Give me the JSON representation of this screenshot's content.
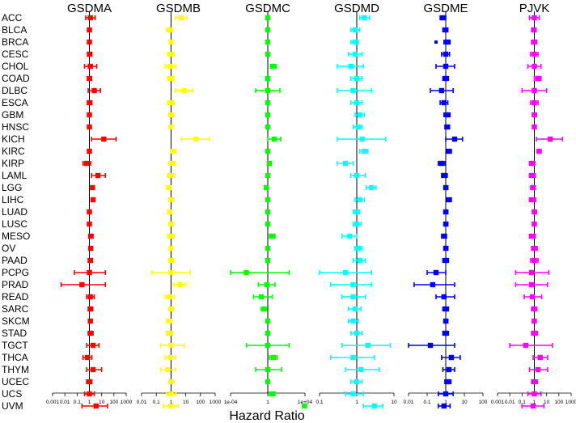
{
  "chart_data": {
    "type": "forest",
    "xlabel": "Hazard Ratio",
    "x_scale": "log",
    "categories": [
      "ACC",
      "BLCA",
      "BRCA",
      "CESC",
      "CHOL",
      "COAD",
      "DLBC",
      "ESCA",
      "GBM",
      "HNSC",
      "KICH",
      "KIRC",
      "KIRP",
      "LAML",
      "LGG",
      "LIHC",
      "LUAD",
      "LUSC",
      "MESO",
      "OV",
      "PAAD",
      "PCPG",
      "PRAD",
      "READ",
      "SARC",
      "SKCM",
      "STAD",
      "TGCT",
      "THCA",
      "THYM",
      "UCEC",
      "UCS",
      "UVM"
    ],
    "panels": [
      {
        "name": "GSDMA",
        "color": "#ff0000",
        "xlim": [
          0.001,
          1000
        ],
        "ticks": [
          0.001,
          0.01,
          0.1,
          1,
          10,
          100,
          1000
        ],
        "tick_labels": [
          "0.001",
          "0.01",
          "0.1",
          "1",
          "10",
          "100",
          "1000"
        ],
        "hr": [
          1.2,
          1.0,
          1.0,
          1.0,
          1.2,
          1.0,
          2.5,
          1.0,
          1.0,
          1.0,
          15,
          1.0,
          0.6,
          5,
          1.8,
          2.0,
          1.0,
          1.0,
          1.3,
          1.3,
          1.2,
          1.0,
          0.25,
          1.2,
          1.2,
          1.2,
          1.2,
          2.0,
          0.7,
          2.0,
          1.0,
          1.0,
          3.5
        ],
        "lower": [
          0.5,
          0.8,
          0.8,
          0.8,
          0.4,
          0.7,
          0.8,
          0.7,
          0.8,
          0.8,
          1.5,
          0.8,
          0.3,
          1.5,
          1.3,
          1.4,
          0.8,
          0.8,
          0.9,
          1.0,
          0.8,
          0.06,
          0.005,
          0.6,
          0.8,
          0.9,
          0.8,
          0.6,
          0.3,
          0.6,
          0.6,
          0.4,
          0.25
        ],
        "upper": [
          3,
          1.4,
          1.4,
          1.6,
          4,
          1.5,
          8,
          1.6,
          1.3,
          1.3,
          150,
          1.3,
          1.3,
          20,
          2.5,
          2.8,
          1.3,
          1.3,
          2.0,
          1.7,
          1.8,
          20,
          20,
          2.5,
          1.9,
          1.6,
          2.0,
          6,
          1.6,
          10,
          1.6,
          2.5,
          30
        ]
      },
      {
        "name": "GSDMB",
        "color": "#ffff00",
        "xlim": [
          0.01,
          1000
        ],
        "ticks": [
          0.01,
          0.1,
          1,
          10,
          100,
          1000
        ],
        "tick_labels": [
          "0.01",
          "0.1",
          "1",
          "10",
          "100",
          "1000"
        ],
        "hr": [
          5,
          0.8,
          1.0,
          1.0,
          0.9,
          0.9,
          8,
          1.0,
          1.0,
          1.0,
          50,
          1.5,
          1.2,
          1.0,
          0.7,
          1.0,
          0.8,
          1.0,
          1.0,
          1.0,
          1.0,
          1.0,
          4,
          0.8,
          1.0,
          0.7,
          0.8,
          1.0,
          0.9,
          0.6,
          1.0,
          1.0,
          1.0
        ],
        "lower": [
          2,
          0.5,
          0.8,
          0.6,
          0.4,
          0.6,
          2,
          0.6,
          0.7,
          0.8,
          5,
          1.0,
          0.7,
          0.6,
          0.5,
          0.7,
          0.6,
          0.7,
          0.6,
          0.8,
          0.7,
          0.05,
          1.5,
          0.4,
          0.7,
          0.5,
          0.5,
          0.2,
          0.4,
          0.2,
          0.7,
          0.5,
          0.3
        ],
        "upper": [
          12,
          1.3,
          1.3,
          1.6,
          2.2,
          1.5,
          30,
          1.6,
          1.5,
          1.3,
          400,
          2.2,
          2.0,
          1.8,
          1.0,
          1.5,
          1.1,
          1.4,
          1.6,
          1.3,
          1.5,
          20,
          10,
          1.8,
          1.5,
          1.1,
          1.3,
          8,
          2.0,
          2.0,
          1.5,
          2.2,
          3
        ]
      },
      {
        "name": "GSDMC",
        "color": "#00ff00",
        "xlim": [
          0.0001,
          10000
        ],
        "ticks": [
          0.0001,
          1,
          10000
        ],
        "tick_labels": [
          "1e-04",
          "1",
          "1e+04"
        ],
        "hr": [
          1.0,
          1.0,
          1.0,
          1.0,
          4,
          1.0,
          1.0,
          1.0,
          1.0,
          1.0,
          5,
          1.0,
          1.5,
          1.0,
          0.7,
          1.0,
          1.0,
          1.0,
          3,
          1.0,
          1.0,
          0.005,
          0.8,
          0.2,
          0.4,
          1.0,
          1.0,
          1.0,
          4,
          1.0,
          1.0,
          3,
          9000
        ],
        "lower": [
          0.8,
          0.8,
          0.8,
          0.7,
          2,
          0.6,
          0.05,
          0.7,
          0.8,
          0.8,
          1.0,
          0.8,
          1.0,
          0.7,
          0.5,
          0.8,
          0.8,
          0.8,
          1.5,
          0.8,
          0.7,
          0.0001,
          0.1,
          0.03,
          0.2,
          0.8,
          0.8,
          0.005,
          1.5,
          0.05,
          0.8,
          1.5,
          8000
        ],
        "upper": [
          1.3,
          1.2,
          1.3,
          1.5,
          8,
          1.6,
          20,
          1.4,
          1.2,
          1.3,
          25,
          1.3,
          2.5,
          1.4,
          1.0,
          1.4,
          1.3,
          1.3,
          6,
          1.3,
          1.4,
          200,
          6,
          3,
          0.8,
          1.3,
          1.4,
          200,
          10,
          30,
          1.4,
          6,
          10000
        ]
      },
      {
        "name": "GSDMD",
        "color": "#00ffff",
        "xlim": [
          0.1,
          10
        ],
        "ticks": [
          0.1,
          1,
          10
        ],
        "tick_labels": [
          "0.1",
          "1",
          "10"
        ],
        "hr": [
          1.6,
          0.9,
          0.9,
          0.9,
          0.7,
          1.0,
          0.8,
          1.0,
          1.2,
          1.1,
          1.4,
          1.6,
          0.5,
          1.0,
          2.5,
          1.2,
          1.0,
          1.0,
          0.65,
          1.1,
          1.2,
          0.5,
          0.8,
          0.8,
          0.9,
          0.8,
          1.0,
          2.0,
          0.8,
          1.3,
          1.0,
          0.8,
          3
        ],
        "lower": [
          1.2,
          0.7,
          0.7,
          0.6,
          0.3,
          0.7,
          0.3,
          0.7,
          0.9,
          0.8,
          0.3,
          1.2,
          0.3,
          0.7,
          1.8,
          0.9,
          0.8,
          0.8,
          0.4,
          0.9,
          0.8,
          0.1,
          0.2,
          0.4,
          0.6,
          0.6,
          0.7,
          0.4,
          0.2,
          0.5,
          0.7,
          0.5,
          1.5
        ],
        "upper": [
          2.2,
          1.2,
          1.1,
          1.4,
          1.5,
          1.4,
          2.5,
          1.4,
          1.6,
          1.4,
          6,
          2.0,
          0.8,
          1.7,
          3.3,
          1.6,
          1.2,
          1.3,
          1.0,
          1.4,
          1.7,
          2.5,
          2.5,
          1.7,
          1.3,
          1.1,
          1.4,
          8,
          3,
          4,
          1.4,
          1.5,
          5
        ]
      },
      {
        "name": "GSDME",
        "color": "#0000ff",
        "xlim": [
          0.01,
          100
        ],
        "ticks": [
          0.01,
          0.1,
          1,
          10,
          100
        ],
        "tick_labels": [
          "0.01",
          "0.1",
          "1",
          "10",
          "100"
        ],
        "hr": [
          0.7,
          1.0,
          1.2,
          1.0,
          1.0,
          1.0,
          0.6,
          0.8,
          1.2,
          1.2,
          3,
          1.5,
          0.6,
          0.8,
          1.0,
          1.5,
          1.0,
          1.0,
          0.8,
          1.0,
          1.0,
          0.3,
          0.2,
          0.8,
          1.0,
          1.0,
          1.0,
          0.15,
          2,
          1.5,
          1.3,
          1.0,
          0.8
        ],
        "lower": [
          0.5,
          0.7,
          0.8,
          0.6,
          0.3,
          0.7,
          0.15,
          0.5,
          0.8,
          0.9,
          1.0,
          1.1,
          0.4,
          0.6,
          0.8,
          1.1,
          0.8,
          0.8,
          0.6,
          0.8,
          0.7,
          0.1,
          0.02,
          0.3,
          0.7,
          0.8,
          0.7,
          0.01,
          0.6,
          0.7,
          0.9,
          0.4,
          0.4
        ],
        "upper": [
          1.0,
          1.3,
          1.7,
          1.6,
          3,
          1.4,
          2.5,
          1.3,
          1.7,
          1.6,
          8,
          2.0,
          0.9,
          1.2,
          1.3,
          2.0,
          1.3,
          1.3,
          1.1,
          1.3,
          1.4,
          1.0,
          3,
          3,
          1.4,
          1.3,
          1.4,
          3,
          6,
          3,
          1.9,
          2.5,
          1.7
        ],
        "extra_marker": {
          "category": "BRCA",
          "value": 0.3
        }
      },
      {
        "name": "PJVK",
        "color": "#ff00ff",
        "xlim": [
          0.001,
          1000
        ],
        "ticks": [
          0.001,
          0.01,
          0.1,
          1,
          10,
          100,
          1000
        ],
        "tick_labels": [
          "0.001",
          "0.01",
          "0.1",
          "1",
          "10",
          "100",
          "1000"
        ],
        "hr": [
          1.0,
          0.9,
          1.0,
          1.0,
          1.0,
          2.0,
          1.0,
          1.0,
          1.0,
          1.0,
          20,
          2.5,
          0.7,
          0.7,
          0.8,
          0.7,
          1.0,
          1.0,
          0.7,
          1.0,
          1.0,
          0.6,
          0.6,
          0.7,
          1.0,
          1.0,
          1.0,
          0.2,
          3,
          2.0,
          1.0,
          1.0,
          0.8
        ],
        "lower": [
          0.4,
          0.6,
          0.6,
          0.5,
          0.3,
          1.0,
          0.1,
          0.5,
          0.7,
          0.8,
          1.5,
          1.7,
          0.4,
          0.4,
          0.5,
          0.4,
          0.7,
          0.7,
          0.4,
          0.6,
          0.5,
          0.03,
          0.03,
          0.15,
          0.6,
          0.7,
          0.6,
          0.01,
          0.8,
          0.4,
          0.6,
          0.3,
          0.1
        ],
        "upper": [
          2.5,
          1.4,
          1.6,
          2.0,
          3.5,
          3.5,
          10,
          2.0,
          1.5,
          1.4,
          200,
          3.2,
          1.1,
          1.2,
          1.2,
          1.3,
          1.5,
          1.4,
          1.2,
          1.7,
          2.0,
          15,
          12,
          4,
          1.6,
          1.3,
          1.8,
          30,
          12,
          12,
          1.8,
          3.5,
          6
        ]
      }
    ]
  }
}
